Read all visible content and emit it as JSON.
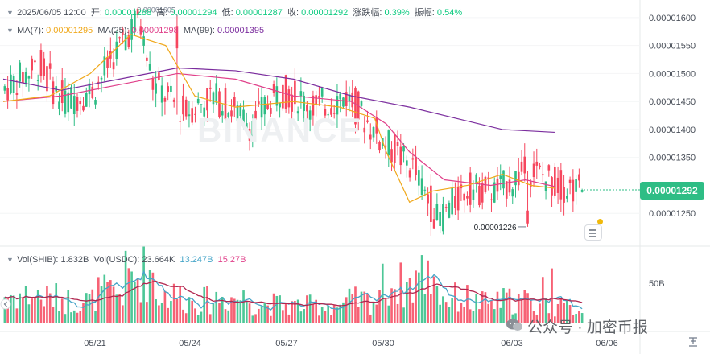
{
  "header": {
    "datetime": "2025/06/05 12:00",
    "open_label": "开:",
    "open": "0.00001288",
    "high_label": "高:",
    "high": "0.00001294",
    "low_label": "低:",
    "low": "0.00001287",
    "close_label": "收:",
    "close": "0.00001292",
    "change_label": "涨跌幅:",
    "change": "0.39%",
    "amplitude_label": "振幅:",
    "amplitude": "0.54%"
  },
  "ma_legend": {
    "ma7_label": "MA(7):",
    "ma7": "0.00001295",
    "ma25_label": "MA(25):",
    "ma25": "0.00001298",
    "ma99_label": "MA(99):",
    "ma99": "0.00001395"
  },
  "vol_legend": {
    "shib_label": "Vol(SHIB):",
    "shib": "1.832B",
    "usdc_label": "Vol(USDC):",
    "usdc": "23.664K",
    "s1": "13.247B",
    "s2": "15.27B"
  },
  "current_price": "0.00001292",
  "watermark": "BINANCE",
  "wechat": "公众号 · 加密币报",
  "colors": {
    "up": "#2ebd85",
    "down": "#f6465d",
    "ma7": "#f0a81a",
    "ma25": "#e0408a",
    "ma99": "#7b2d9e",
    "vol_line1": "#46a5c8",
    "vol_line2": "#b0264f"
  },
  "chart_data": {
    "type": "candlestick",
    "interval_hours": 2,
    "y_ticks": [
      "0.00001600",
      "0.00001550",
      "0.00001500",
      "0.00001450",
      "0.00001400",
      "0.00001350",
      "0.00001250"
    ],
    "ylim": [
      1.2e-05,
      1.62e-05
    ],
    "x_ticks": [
      "05/21",
      "05/24",
      "05/27",
      "05/30",
      "06/03",
      "06/06"
    ],
    "vol_tick": "50B",
    "high_annotation": "0.00001605",
    "low_annotation": "0.00001226",
    "segments": [
      {
        "n": 12,
        "from": 1.47e-05,
        "to": 1.515e-05,
        "vol": 22
      },
      {
        "n": 8,
        "from": 1.515e-05,
        "to": 1.45e-05,
        "vol": 20
      },
      {
        "n": 10,
        "from": 1.45e-05,
        "to": 1.47e-05,
        "vol": 18
      },
      {
        "n": 10,
        "from": 1.47e-05,
        "to": 1.56e-05,
        "vol": 24
      },
      {
        "n": 5,
        "from": 1.56e-05,
        "to": 1.6e-05,
        "vol": 36
      },
      {
        "n": 5,
        "from": 1.6e-05,
        "to": 1.48e-05,
        "vol": 40
      },
      {
        "n": 10,
        "from": 1.48e-05,
        "to": 1.43e-05,
        "vol": 22
      },
      {
        "n": 10,
        "from": 1.43e-05,
        "to": 1.46e-05,
        "vol": 18
      },
      {
        "n": 12,
        "from": 1.46e-05,
        "to": 1.41e-05,
        "vol": 20
      },
      {
        "n": 10,
        "from": 1.41e-05,
        "to": 1.47e-05,
        "vol": 15
      },
      {
        "n": 12,
        "from": 1.47e-05,
        "to": 1.44e-05,
        "vol": 14
      },
      {
        "n": 10,
        "from": 1.44e-05,
        "to": 1.46e-05,
        "vol": 14
      },
      {
        "n": 10,
        "from": 1.46e-05,
        "to": 1.39e-05,
        "vol": 18
      },
      {
        "n": 12,
        "from": 1.39e-05,
        "to": 1.33e-05,
        "vol": 30
      },
      {
        "n": 8,
        "from": 1.33e-05,
        "to": 1.24e-05,
        "vol": 38
      },
      {
        "n": 10,
        "from": 1.24e-05,
        "to": 1.295e-05,
        "vol": 20
      },
      {
        "n": 10,
        "from": 1.295e-05,
        "to": 1.29e-05,
        "vol": 16
      },
      {
        "n": 10,
        "from": 1.29e-05,
        "to": 1.33e-05,
        "vol": 18
      },
      {
        "n": 10,
        "from": 1.33e-05,
        "to": 1.3e-05,
        "vol": 14
      },
      {
        "n": 8,
        "from": 1.3e-05,
        "to": 1.292e-05,
        "vol": 12
      }
    ],
    "ma7_path": [
      [
        0,
        1.45e-05
      ],
      [
        0.08,
        1.46e-05
      ],
      [
        0.15,
        1.5e-05
      ],
      [
        0.22,
        1.57e-05
      ],
      [
        0.28,
        1.55e-05
      ],
      [
        0.33,
        1.46e-05
      ],
      [
        0.4,
        1.44e-05
      ],
      [
        0.5,
        1.45e-05
      ],
      [
        0.58,
        1.44e-05
      ],
      [
        0.64,
        1.42e-05
      ],
      [
        0.66,
        1.36e-05
      ],
      [
        0.7,
        1.27e-05
      ],
      [
        0.74,
        1.29e-05
      ],
      [
        0.8,
        1.3e-05
      ],
      [
        0.86,
        1.32e-05
      ],
      [
        0.91,
        1.3e-05
      ],
      [
        0.95,
        1.295e-05
      ]
    ],
    "ma25_path": [
      [
        0,
        1.45e-05
      ],
      [
        0.1,
        1.46e-05
      ],
      [
        0.2,
        1.48e-05
      ],
      [
        0.3,
        1.5e-05
      ],
      [
        0.4,
        1.49e-05
      ],
      [
        0.5,
        1.46e-05
      ],
      [
        0.6,
        1.45e-05
      ],
      [
        0.66,
        1.41e-05
      ],
      [
        0.7,
        1.36e-05
      ],
      [
        0.76,
        1.31e-05
      ],
      [
        0.84,
        1.3e-05
      ],
      [
        0.9,
        1.31e-05
      ],
      [
        0.95,
        1.298e-05
      ]
    ],
    "ma99_path": [
      [
        0,
        1.49e-05
      ],
      [
        0.1,
        1.47e-05
      ],
      [
        0.2,
        1.49e-05
      ],
      [
        0.3,
        1.51e-05
      ],
      [
        0.4,
        1.505e-05
      ],
      [
        0.5,
        1.49e-05
      ],
      [
        0.6,
        1.46e-05
      ],
      [
        0.7,
        1.44e-05
      ],
      [
        0.78,
        1.42e-05
      ],
      [
        0.86,
        1.4e-05
      ],
      [
        0.95,
        1.395e-05
      ]
    ]
  }
}
